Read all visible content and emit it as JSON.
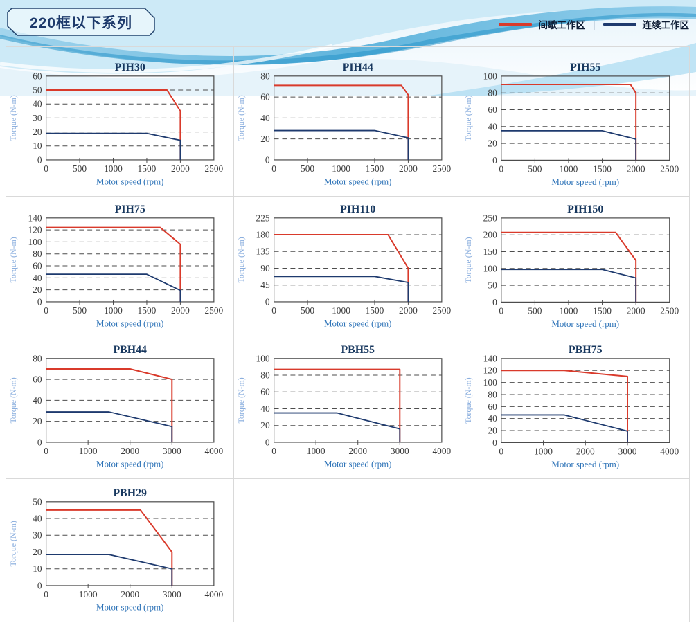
{
  "header": {
    "title": "220框以下系列"
  },
  "legend": {
    "intermittent_label": "间歇工作区",
    "continuous_label": "连续工作区",
    "separator": "|"
  },
  "colors": {
    "intermittent": "#d93a2b",
    "continuous": "#1e3a6e",
    "title_text": "#17375e",
    "x_label": "#2f74b8",
    "y_label": "#8aaede",
    "grid_border": "#d9d9d9",
    "axis": "#4a4a4a"
  },
  "chart_data": [
    {
      "name": "PIH30",
      "type": "line",
      "xlabel": "Motor speed (rpm)",
      "ylabel": "Torque (N-m)",
      "xlim": [
        0,
        2500
      ],
      "xstep": 500,
      "ylim": [
        0,
        60
      ],
      "ystep": 10,
      "series": [
        {
          "name": "间歇工作区",
          "role": "intermittent",
          "points": [
            [
              0,
              50
            ],
            [
              1800,
              50
            ],
            [
              2000,
              35
            ],
            [
              2000,
              0
            ]
          ]
        },
        {
          "name": "连续工作区",
          "role": "continuous",
          "points": [
            [
              0,
              19
            ],
            [
              1500,
              19
            ],
            [
              2000,
              14
            ],
            [
              2000,
              0
            ]
          ]
        }
      ]
    },
    {
      "name": "PIH44",
      "type": "line",
      "xlabel": "Motor speed (rpm)",
      "ylabel": "Torque (N-m)",
      "xlim": [
        0,
        2500
      ],
      "xstep": 500,
      "ylim": [
        0,
        80
      ],
      "ystep": 20,
      "series": [
        {
          "name": "间歇工作区",
          "role": "intermittent",
          "points": [
            [
              0,
              71
            ],
            [
              1900,
              71
            ],
            [
              2000,
              62
            ],
            [
              2000,
              0
            ]
          ]
        },
        {
          "name": "连续工作区",
          "role": "continuous",
          "points": [
            [
              0,
              28
            ],
            [
              1500,
              28
            ],
            [
              2000,
              21
            ],
            [
              2000,
              0
            ]
          ]
        }
      ]
    },
    {
      "name": "PIH55",
      "type": "line",
      "xlabel": "Motor speed (rpm)",
      "ylabel": "Torque (N-m)",
      "xlim": [
        0,
        2500
      ],
      "xstep": 500,
      "ylim": [
        0,
        100
      ],
      "ystep": 20,
      "series": [
        {
          "name": "间歇工作区",
          "role": "intermittent",
          "points": [
            [
              0,
              90
            ],
            [
              1920,
              90
            ],
            [
              2000,
              80
            ],
            [
              2000,
              0
            ]
          ]
        },
        {
          "name": "连续工作区",
          "role": "continuous",
          "points": [
            [
              0,
              35
            ],
            [
              1500,
              35
            ],
            [
              2000,
              25
            ],
            [
              2000,
              0
            ]
          ]
        }
      ]
    },
    {
      "name": "PIH75",
      "type": "line",
      "xlabel": "Motor speed (rpm)",
      "ylabel": "Torque (N-m)",
      "xlim": [
        0,
        2500
      ],
      "xstep": 500,
      "ylim": [
        0,
        140
      ],
      "ystep": 20,
      "series": [
        {
          "name": "间歇工作区",
          "role": "intermittent",
          "points": [
            [
              0,
              124
            ],
            [
              1700,
              124
            ],
            [
              2000,
              96
            ],
            [
              2000,
              0
            ]
          ]
        },
        {
          "name": "连续工作区",
          "role": "continuous",
          "points": [
            [
              0,
              46
            ],
            [
              1500,
              46
            ],
            [
              2000,
              19
            ],
            [
              2000,
              0
            ]
          ]
        }
      ]
    },
    {
      "name": "PIH110",
      "type": "line",
      "xlabel": "Motor speed (rpm)",
      "ylabel": "Torque (N-m)",
      "xlim": [
        0,
        2500
      ],
      "xstep": 500,
      "ylim": [
        0,
        225
      ],
      "ystep": 45,
      "series": [
        {
          "name": "间歇工作区",
          "role": "intermittent",
          "points": [
            [
              0,
              180
            ],
            [
              1700,
              180
            ],
            [
              2000,
              90
            ],
            [
              2000,
              0
            ]
          ]
        },
        {
          "name": "连续工作区",
          "role": "continuous",
          "points": [
            [
              0,
              68
            ],
            [
              1500,
              68
            ],
            [
              2000,
              52
            ],
            [
              2000,
              0
            ]
          ]
        }
      ]
    },
    {
      "name": "PIH150",
      "type": "line",
      "xlabel": "Motor speed (rpm)",
      "ylabel": "Torque (N-m)",
      "xlim": [
        0,
        2500
      ],
      "xstep": 500,
      "ylim": [
        0,
        250
      ],
      "ystep": 50,
      "series": [
        {
          "name": "间歇工作区",
          "role": "intermittent",
          "points": [
            [
              0,
              207
            ],
            [
              1700,
              207
            ],
            [
              2000,
              124
            ],
            [
              2000,
              0
            ]
          ]
        },
        {
          "name": "连续工作区",
          "role": "continuous",
          "points": [
            [
              0,
              97
            ],
            [
              1500,
              97
            ],
            [
              2000,
              72
            ],
            [
              2000,
              0
            ]
          ]
        }
      ]
    },
    {
      "name": "PBH44",
      "type": "line",
      "xlabel": "Motor speed (rpm)",
      "ylabel": "Torque (N-m)",
      "xlim": [
        0,
        4000
      ],
      "xstep": 1000,
      "ylim": [
        0,
        80
      ],
      "ystep": 20,
      "series": [
        {
          "name": "间歇工作区",
          "role": "intermittent",
          "points": [
            [
              0,
              70
            ],
            [
              2000,
              70
            ],
            [
              3000,
              60
            ],
            [
              3000,
              0
            ]
          ]
        },
        {
          "name": "连续工作区",
          "role": "continuous",
          "points": [
            [
              0,
              29
            ],
            [
              1500,
              29
            ],
            [
              3000,
              15
            ],
            [
              3000,
              0
            ]
          ]
        }
      ]
    },
    {
      "name": "PBH55",
      "type": "line",
      "xlabel": "Motor speed (rpm)",
      "ylabel": "Torque (N-m)",
      "xlim": [
        0,
        4000
      ],
      "xstep": 1000,
      "ylim": [
        0,
        100
      ],
      "ystep": 20,
      "series": [
        {
          "name": "间歇工作区",
          "role": "intermittent",
          "points": [
            [
              0,
              87
            ],
            [
              3000,
              87
            ],
            [
              3000,
              0
            ]
          ]
        },
        {
          "name": "连续工作区",
          "role": "continuous",
          "points": [
            [
              0,
              35
            ],
            [
              1500,
              35
            ],
            [
              3000,
              16
            ],
            [
              3000,
              0
            ]
          ]
        }
      ]
    },
    {
      "name": "PBH75",
      "type": "line",
      "xlabel": "Motor speed (rpm)",
      "ylabel": "Torque (N-m)",
      "xlim": [
        0,
        4000
      ],
      "xstep": 1000,
      "ylim": [
        0,
        140
      ],
      "ystep": 20,
      "series": [
        {
          "name": "间歇工作区",
          "role": "intermittent",
          "points": [
            [
              0,
              120
            ],
            [
              1500,
              120
            ],
            [
              3000,
              110
            ],
            [
              3000,
              0
            ]
          ]
        },
        {
          "name": "连续工作区",
          "role": "continuous",
          "points": [
            [
              0,
              46
            ],
            [
              1500,
              46
            ],
            [
              3000,
              19
            ],
            [
              3000,
              0
            ]
          ]
        }
      ]
    },
    {
      "name": "PBH29",
      "type": "line",
      "xlabel": "Motor speed (rpm)",
      "ylabel": "Torque (N-m)",
      "xlim": [
        0,
        4000
      ],
      "xstep": 1000,
      "ylim": [
        0,
        50
      ],
      "ystep": 10,
      "series": [
        {
          "name": "间歇工作区",
          "role": "intermittent",
          "points": [
            [
              0,
              45
            ],
            [
              2250,
              45
            ],
            [
              3000,
              20
            ],
            [
              3000,
              0
            ]
          ]
        },
        {
          "name": "连续工作区",
          "role": "continuous",
          "points": [
            [
              0,
              18.5
            ],
            [
              1500,
              18.5
            ],
            [
              3000,
              10
            ],
            [
              3000,
              0
            ]
          ]
        }
      ]
    }
  ]
}
